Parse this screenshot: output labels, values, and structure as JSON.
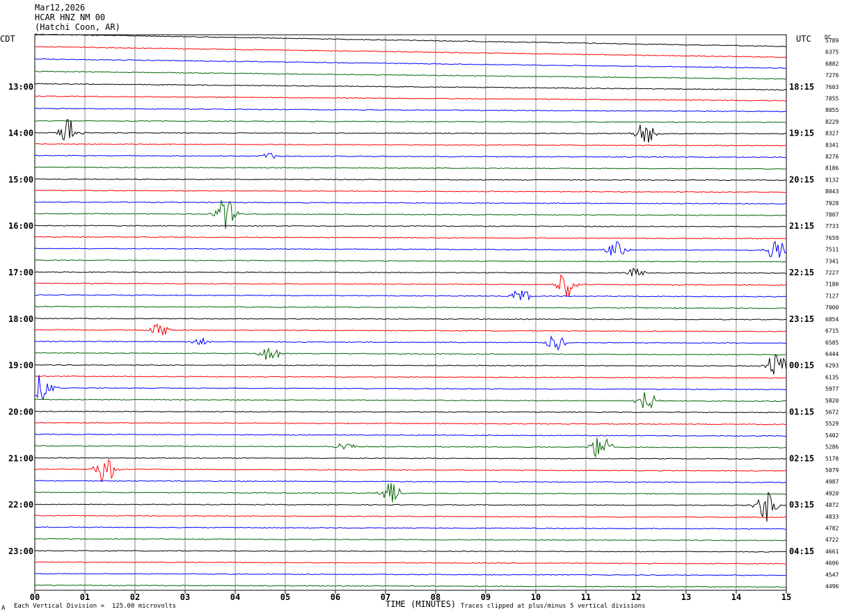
{
  "header": {
    "date": "Mar12,2026",
    "station": "HCAR HNZ NM 00",
    "location": "(Hatchi Coon, AR)"
  },
  "chart_data": {
    "type": "line",
    "title": "Mar12,2026",
    "left_tz": "CDT",
    "right_tz": "UTC",
    "dc_label": "DC",
    "xlabel": "TIME (MINUTES)",
    "x_ticks": [
      "00",
      "01",
      "02",
      "03",
      "04",
      "05",
      "06",
      "07",
      "08",
      "09",
      "10",
      "11",
      "12",
      "13",
      "14",
      "15"
    ],
    "xlim": [
      0,
      15
    ],
    "trace_minutes": 15,
    "trace_colors": [
      "#000000",
      "#ff0000",
      "#0000ff",
      "#006400"
    ],
    "left_hour_labels": [
      "13:00",
      "14:00",
      "15:00",
      "16:00",
      "17:00",
      "18:00",
      "19:00",
      "20:00",
      "21:00",
      "22:00",
      "23:00"
    ],
    "right_hour_labels": [
      "18:15",
      "19:15",
      "20:15",
      "21:15",
      "22:15",
      "23:15",
      "00:15",
      "01:15",
      "02:15",
      "03:15",
      "04:15"
    ],
    "dc_offsets": [
      "5789",
      "6375",
      "6882",
      "7276",
      "7603",
      "7855",
      "8055",
      "8229",
      "8327",
      "8341",
      "8276",
      "8186",
      "8132",
      "8043",
      "7928",
      "7807",
      "7733",
      "7659",
      "7511",
      "7341",
      "7227",
      "7180",
      "7127",
      "7000",
      "6854",
      "6715",
      "6585",
      "6444",
      "6293",
      "6135",
      "5977",
      "5820",
      "5672",
      "5529",
      "5402",
      "5286",
      "5178",
      "5079",
      "4987",
      "4920",
      "4872",
      "4833",
      "4782",
      "4722",
      "4661",
      "4606",
      "4547",
      "4496"
    ],
    "events": [
      {
        "trace": 8,
        "minute": 0.7,
        "amp": 2.2
      },
      {
        "trace": 8,
        "minute": 12.2,
        "amp": 2.0
      },
      {
        "trace": 10,
        "minute": 4.7,
        "amp": 0.5
      },
      {
        "trace": 15,
        "minute": 3.8,
        "amp": 2.4
      },
      {
        "trace": 18,
        "minute": 11.6,
        "amp": 1.2
      },
      {
        "trace": 18,
        "minute": 14.8,
        "amp": 1.8
      },
      {
        "trace": 20,
        "minute": 12.0,
        "amp": 0.8
      },
      {
        "trace": 21,
        "minute": 10.6,
        "amp": 2.0
      },
      {
        "trace": 22,
        "minute": 9.7,
        "amp": 1.2
      },
      {
        "trace": 25,
        "minute": 2.5,
        "amp": 1.0
      },
      {
        "trace": 26,
        "minute": 10.4,
        "amp": 1.4
      },
      {
        "trace": 26,
        "minute": 3.3,
        "amp": 0.6
      },
      {
        "trace": 27,
        "minute": 4.7,
        "amp": 1.2
      },
      {
        "trace": 28,
        "minute": 14.8,
        "amp": 2.4
      },
      {
        "trace": 30,
        "minute": 0.15,
        "amp": 2.2
      },
      {
        "trace": 31,
        "minute": 12.2,
        "amp": 1.6
      },
      {
        "trace": 35,
        "minute": 6.2,
        "amp": 0.7
      },
      {
        "trace": 35,
        "minute": 11.3,
        "amp": 2.0
      },
      {
        "trace": 37,
        "minute": 1.4,
        "amp": 2.2
      },
      {
        "trace": 39,
        "minute": 7.1,
        "amp": 1.6
      },
      {
        "trace": 40,
        "minute": 14.6,
        "amp": 2.4
      }
    ]
  },
  "footer": {
    "scale_note": "Each Vertical Division =  125.00 microvolts",
    "clip_note": "Traces clipped at plus/minus 5 vertical divisions",
    "corner_mark": "A"
  }
}
